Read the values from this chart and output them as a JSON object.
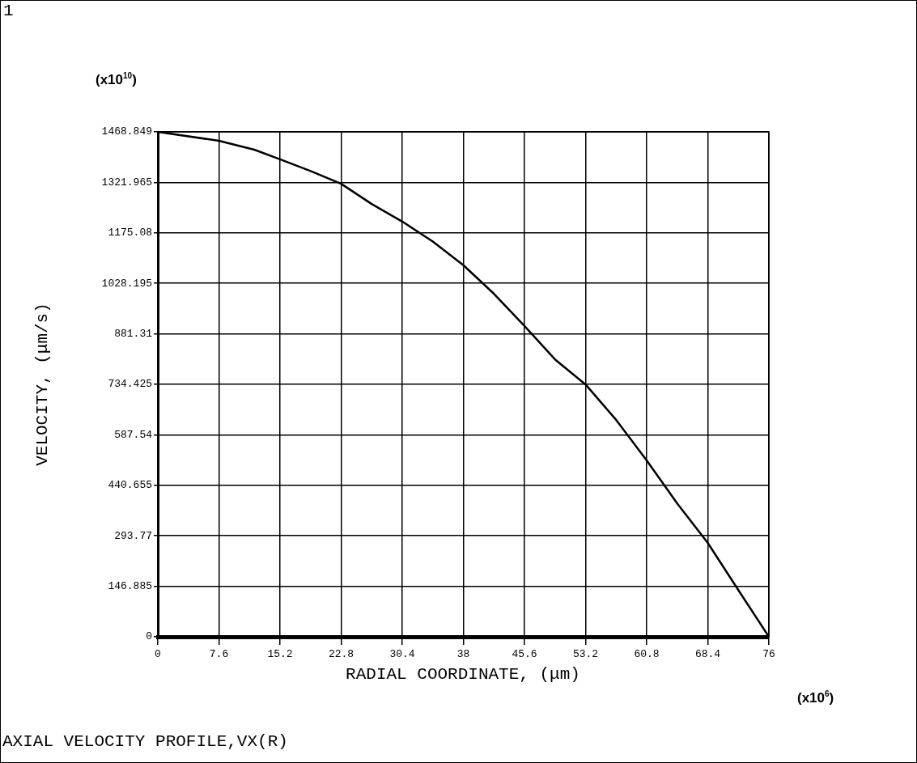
{
  "chart_data": {
    "type": "line",
    "title": "AXIAL VELOCITY PROFILE,VX(R)",
    "xlabel": "RADIAL COORDINATE, (μm)",
    "ylabel": "VELOCITY, (μm/s)",
    "annotations": [
      "1",
      "(x10$^{10}$)",
      "(x10$^{6}$)"
    ],
    "x": [
      0,
      7.6,
      12,
      15.2,
      19,
      22.8,
      26.6,
      30.4,
      34.2,
      38,
      41.8,
      45.6,
      49.4,
      53.2,
      57,
      60.8,
      64.6,
      68.4,
      72.2,
      76
    ],
    "series": [
      {
        "color": "#000000",
        "values": [
          1468.8,
          1443,
          1417,
          1389,
          1355,
          1318,
          1259,
          1208,
          1150,
          1081,
          998,
          904,
          807,
          734,
          631,
          513,
          388,
          273,
          136,
          0
        ]
      }
    ],
    "xlim": [
      0,
      76
    ],
    "xticks": [
      0,
      7.6,
      15.2,
      22.8,
      30.4,
      38,
      45.6,
      53.2,
      60.8,
      68.4,
      76
    ],
    "ylim": [
      0,
      1468.849
    ],
    "yticks": [
      0,
      146.885,
      293.77,
      440.655,
      587.54,
      734.425,
      881.31,
      1028.195,
      1175.08,
      1321.965,
      1468.849
    ],
    "grid": true,
    "legend": false,
    "marker": "none",
    "line_style": "solid"
  }
}
